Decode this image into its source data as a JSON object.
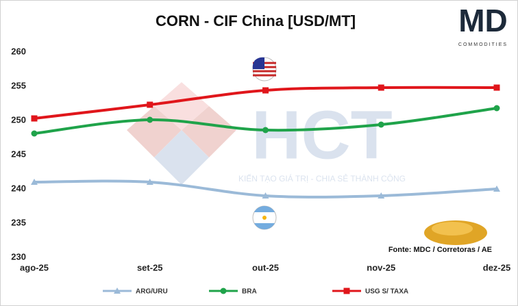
{
  "chart_data": {
    "type": "line",
    "title": "CORN - CIF China [USD/MT]",
    "source": "Fonte: MDC / Corretoras / AE",
    "logo": {
      "mark": "MD",
      "text": "COMMODITIES"
    },
    "watermark": {
      "mark": "HCT",
      "text": "KIẾN TẠO GIÁ TRỊ - CHIA SẺ THÀNH CÔNG"
    },
    "categories": [
      "ago-25",
      "set-25",
      "out-25",
      "nov-25",
      "dez-25"
    ],
    "series": [
      {
        "name": "ARG/URU",
        "color": "#9bbad8",
        "marker": "triangle",
        "values": [
          241,
          241,
          239,
          239,
          240
        ]
      },
      {
        "name": "BRA",
        "color": "#1fa34a",
        "marker": "circle",
        "values": [
          248.1,
          250.1,
          248.6,
          249.4,
          251.8
        ]
      },
      {
        "name": "USG S/ TAXA",
        "color": "#e0161b",
        "marker": "square",
        "values": [
          250.3,
          252.3,
          254.4,
          254.8,
          254.8
        ]
      }
    ],
    "ylim": [
      230,
      260
    ],
    "yticks": [
      230,
      235,
      240,
      245,
      250,
      255,
      260
    ],
    "grid": false,
    "smooth": true,
    "legend": "bottom"
  }
}
